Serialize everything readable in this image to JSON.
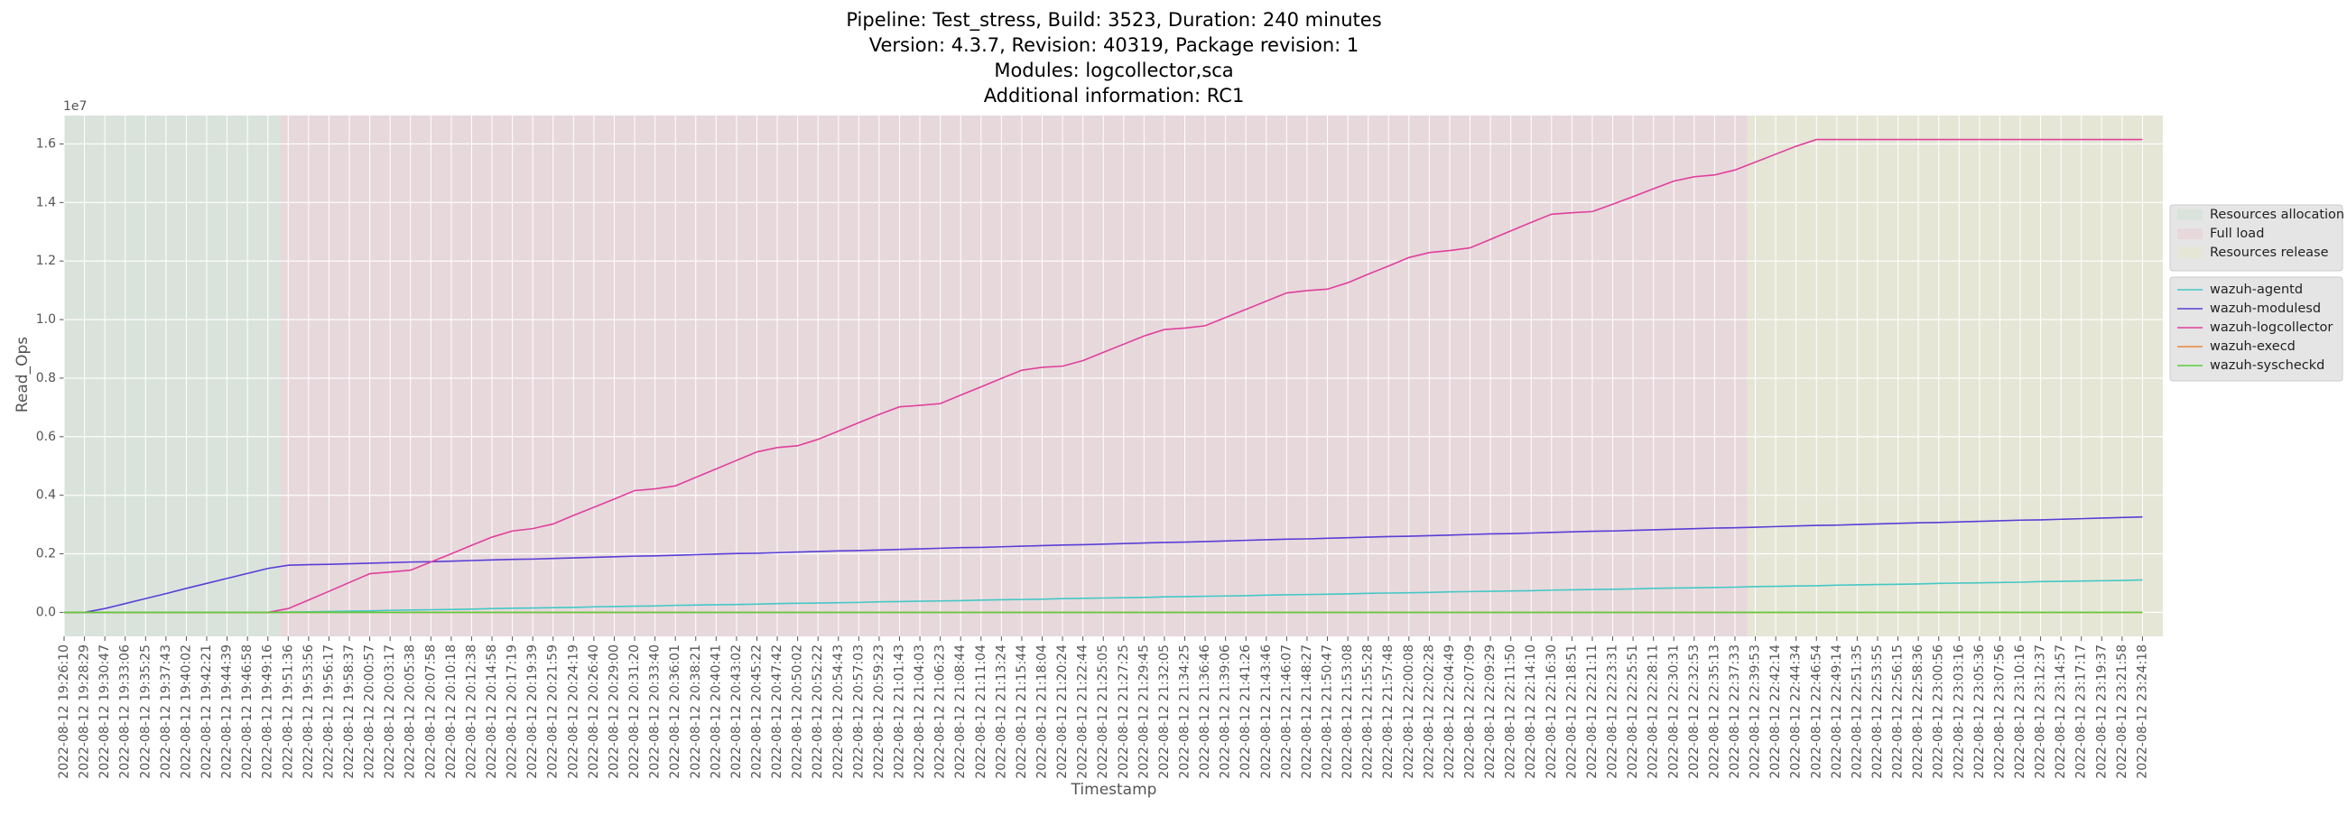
{
  "chart_data": {
    "type": "line",
    "title": [
      "Pipeline: Test_stress, Build: 3523, Duration: 240 minutes",
      "Version: 4.3.7, Revision: 40319, Package revision: 1",
      "Modules: logcollector,sca",
      "Additional information: RC1"
    ],
    "xlabel": "Timestamp",
    "ylabel": "Read_Ops",
    "y_offset_label": "1e7",
    "categories": [
      "2022-08-12 19:26:10",
      "2022-08-12 19:28:29",
      "2022-08-12 19:30:47",
      "2022-08-12 19:33:06",
      "2022-08-12 19:35:25",
      "2022-08-12 19:37:43",
      "2022-08-12 19:40:02",
      "2022-08-12 19:42:21",
      "2022-08-12 19:44:39",
      "2022-08-12 19:46:58",
      "2022-08-12 19:49:16",
      "2022-08-12 19:51:36",
      "2022-08-12 19:53:56",
      "2022-08-12 19:56:17",
      "2022-08-12 19:58:37",
      "2022-08-12 20:00:57",
      "2022-08-12 20:03:17",
      "2022-08-12 20:05:38",
      "2022-08-12 20:07:58",
      "2022-08-12 20:10:18",
      "2022-08-12 20:12:38",
      "2022-08-12 20:14:58",
      "2022-08-12 20:17:19",
      "2022-08-12 20:19:39",
      "2022-08-12 20:21:59",
      "2022-08-12 20:24:19",
      "2022-08-12 20:26:40",
      "2022-08-12 20:29:00",
      "2022-08-12 20:31:20",
      "2022-08-12 20:33:40",
      "2022-08-12 20:36:01",
      "2022-08-12 20:38:21",
      "2022-08-12 20:40:41",
      "2022-08-12 20:43:02",
      "2022-08-12 20:45:22",
      "2022-08-12 20:47:42",
      "2022-08-12 20:50:02",
      "2022-08-12 20:52:22",
      "2022-08-12 20:54:43",
      "2022-08-12 20:57:03",
      "2022-08-12 20:59:23",
      "2022-08-12 21:01:43",
      "2022-08-12 21:04:03",
      "2022-08-12 21:06:23",
      "2022-08-12 21:08:44",
      "2022-08-12 21:11:04",
      "2022-08-12 21:13:24",
      "2022-08-12 21:15:44",
      "2022-08-12 21:18:04",
      "2022-08-12 21:20:24",
      "2022-08-12 21:22:44",
      "2022-08-12 21:25:05",
      "2022-08-12 21:27:25",
      "2022-08-12 21:29:45",
      "2022-08-12 21:32:05",
      "2022-08-12 21:34:25",
      "2022-08-12 21:36:46",
      "2022-08-12 21:39:06",
      "2022-08-12 21:41:26",
      "2022-08-12 21:43:46",
      "2022-08-12 21:46:07",
      "2022-08-12 21:48:27",
      "2022-08-12 21:50:47",
      "2022-08-12 21:53:08",
      "2022-08-12 21:55:28",
      "2022-08-12 21:57:48",
      "2022-08-12 22:00:08",
      "2022-08-12 22:02:28",
      "2022-08-12 22:04:49",
      "2022-08-12 22:07:09",
      "2022-08-12 22:09:29",
      "2022-08-12 22:11:50",
      "2022-08-12 22:14:10",
      "2022-08-12 22:16:30",
      "2022-08-12 22:18:51",
      "2022-08-12 22:21:11",
      "2022-08-12 22:23:31",
      "2022-08-12 22:25:51",
      "2022-08-12 22:28:11",
      "2022-08-12 22:30:31",
      "2022-08-12 22:32:53",
      "2022-08-12 22:35:13",
      "2022-08-12 22:37:33",
      "2022-08-12 22:39:53",
      "2022-08-12 22:42:14",
      "2022-08-12 22:44:34",
      "2022-08-12 22:46:54",
      "2022-08-12 22:49:14",
      "2022-08-12 22:51:35",
      "2022-08-12 22:53:55",
      "2022-08-12 22:56:15",
      "2022-08-12 22:58:36",
      "2022-08-12 23:00:56",
      "2022-08-12 23:03:16",
      "2022-08-12 23:05:36",
      "2022-08-12 23:07:56",
      "2022-08-12 23:10:16",
      "2022-08-12 23:12:37",
      "2022-08-12 23:14:57",
      "2022-08-12 23:17:17",
      "2022-08-12 23:19:37",
      "2022-08-12 23:21:58",
      "2022-08-12 23:24:18"
    ],
    "xlim": [
      0,
      103
    ],
    "ylim": [
      -820000,
      16970000
    ],
    "yticks": [
      {
        "value": 0,
        "label": "0.0"
      },
      {
        "value": 2000000,
        "label": "0.2"
      },
      {
        "value": 4000000,
        "label": "0.4"
      },
      {
        "value": 6000000,
        "label": "0.6"
      },
      {
        "value": 8000000,
        "label": "0.8"
      },
      {
        "value": 10000000,
        "label": "1.0"
      },
      {
        "value": 12000000,
        "label": "1.2"
      },
      {
        "value": 14000000,
        "label": "1.4"
      },
      {
        "value": 16000000,
        "label": "1.6"
      }
    ],
    "grid": true,
    "legend": "right",
    "phases": [
      {
        "name": "Resources allocation",
        "color": "#d9e3dc",
        "span": [
          0,
          10.6
        ]
      },
      {
        "name": "Full load",
        "color": "#e7d8dc",
        "span": [
          10.6,
          82.6
        ]
      },
      {
        "name": "Resources release",
        "color": "#e6e6d7",
        "span": [
          82.6,
          103
        ]
      }
    ],
    "series": [
      {
        "name": "wazuh-agentd",
        "color": "#45c8c4",
        "values": [
          0,
          0,
          0,
          0,
          0,
          0,
          0,
          0,
          0,
          0,
          0,
          10000,
          20000,
          30000,
          40000,
          50000,
          70000,
          80000,
          90000,
          100000,
          110000,
          130000,
          140000,
          150000,
          160000,
          170000,
          190000,
          200000,
          210000,
          220000,
          240000,
          250000,
          260000,
          270000,
          280000,
          300000,
          310000,
          320000,
          330000,
          340000,
          360000,
          370000,
          380000,
          390000,
          400000,
          420000,
          430000,
          440000,
          450000,
          470000,
          480000,
          490000,
          500000,
          510000,
          530000,
          540000,
          550000,
          560000,
          570000,
          590000,
          600000,
          610000,
          620000,
          630000,
          650000,
          660000,
          670000,
          680000,
          700000,
          710000,
          720000,
          730000,
          740000,
          760000,
          770000,
          780000,
          790000,
          800000,
          820000,
          830000,
          840000,
          850000,
          860000,
          880000,
          890000,
          900000,
          910000,
          930000,
          940000,
          950000,
          960000,
          970000,
          990000,
          1000000,
          1010000,
          1020000,
          1030000,
          1050000,
          1060000,
          1070000,
          1080000,
          1090000,
          1110000
        ]
      },
      {
        "name": "wazuh-modulesd",
        "color": "#5a3ed6",
        "values": [
          0,
          0,
          130000,
          300000,
          470000,
          640000,
          820000,
          990000,
          1160000,
          1330000,
          1500000,
          1610000,
          1630000,
          1640000,
          1660000,
          1680000,
          1700000,
          1720000,
          1730000,
          1750000,
          1770000,
          1790000,
          1810000,
          1820000,
          1840000,
          1860000,
          1880000,
          1900000,
          1920000,
          1930000,
          1950000,
          1970000,
          1990000,
          2010000,
          2020000,
          2040000,
          2060000,
          2080000,
          2100000,
          2110000,
          2130000,
          2150000,
          2170000,
          2190000,
          2210000,
          2220000,
          2240000,
          2260000,
          2280000,
          2300000,
          2310000,
          2330000,
          2350000,
          2370000,
          2390000,
          2400000,
          2420000,
          2440000,
          2460000,
          2480000,
          2500000,
          2510000,
          2530000,
          2550000,
          2570000,
          2590000,
          2600000,
          2620000,
          2640000,
          2660000,
          2680000,
          2690000,
          2710000,
          2730000,
          2750000,
          2770000,
          2780000,
          2800000,
          2820000,
          2840000,
          2860000,
          2880000,
          2890000,
          2910000,
          2930000,
          2950000,
          2970000,
          2980000,
          3000000,
          3020000,
          3040000,
          3060000,
          3070000,
          3090000,
          3110000,
          3130000,
          3150000,
          3160000,
          3180000,
          3200000,
          3220000,
          3240000,
          3260000
        ]
      },
      {
        "name": "wazuh-logcollector",
        "color": "#e0409c",
        "values": [
          0,
          0,
          0,
          0,
          0,
          0,
          0,
          0,
          0,
          0,
          0,
          130000,
          420000,
          720000,
          1020000,
          1320000,
          1380000,
          1440000,
          1720000,
          2000000,
          2290000,
          2570000,
          2780000,
          2860000,
          3020000,
          3310000,
          3590000,
          3870000,
          4160000,
          4220000,
          4320000,
          4610000,
          4900000,
          5190000,
          5480000,
          5630000,
          5690000,
          5910000,
          6190000,
          6480000,
          6760000,
          7020000,
          7070000,
          7130000,
          7420000,
          7700000,
          7990000,
          8270000,
          8370000,
          8410000,
          8600000,
          8880000,
          9160000,
          9440000,
          9660000,
          9710000,
          9790000,
          10070000,
          10350000,
          10630000,
          10910000,
          10990000,
          11040000,
          11260000,
          11550000,
          11830000,
          12120000,
          12290000,
          12360000,
          12450000,
          12740000,
          13030000,
          13320000,
          13600000,
          13650000,
          13690000,
          13940000,
          14200000,
          14470000,
          14730000,
          14880000,
          14940000,
          15110000,
          15380000,
          15650000,
          15920000,
          16150000,
          16150000,
          16150000,
          16150000,
          16150000,
          16150000,
          16150000,
          16150000,
          16150000,
          16150000,
          16150000,
          16150000,
          16150000,
          16150000,
          16150000,
          16150000,
          16150000
        ]
      },
      {
        "name": "wazuh-execd",
        "color": "#e8893a",
        "values": [
          0,
          0,
          0,
          0,
          0,
          0,
          0,
          0,
          0,
          0,
          0,
          0,
          0,
          0,
          0,
          0,
          0,
          0,
          0,
          0,
          0,
          0,
          0,
          0,
          0,
          0,
          0,
          0,
          0,
          0,
          0,
          0,
          0,
          0,
          0,
          0,
          0,
          0,
          0,
          0,
          0,
          0,
          0,
          0,
          0,
          0,
          0,
          0,
          0,
          0,
          0,
          0,
          0,
          0,
          0,
          0,
          0,
          0,
          0,
          0,
          0,
          0,
          0,
          0,
          0,
          0,
          0,
          0,
          0,
          0,
          0,
          0,
          0,
          0,
          0,
          0,
          0,
          0,
          0,
          0,
          0,
          0,
          0,
          0,
          0,
          0,
          0,
          0,
          0,
          0,
          0,
          0,
          0,
          0,
          0,
          0,
          0,
          0,
          0,
          0,
          0,
          0,
          0
        ]
      },
      {
        "name": "wazuh-syscheckd",
        "color": "#5ccc3c",
        "values": [
          0,
          0,
          0,
          0,
          0,
          0,
          0,
          0,
          0,
          0,
          0,
          0,
          0,
          0,
          0,
          0,
          0,
          0,
          0,
          0,
          0,
          0,
          0,
          0,
          0,
          0,
          0,
          0,
          0,
          0,
          0,
          0,
          0,
          0,
          0,
          0,
          0,
          0,
          0,
          0,
          0,
          0,
          0,
          0,
          0,
          0,
          0,
          0,
          0,
          0,
          0,
          0,
          0,
          0,
          0,
          0,
          0,
          0,
          0,
          0,
          0,
          0,
          0,
          0,
          0,
          0,
          0,
          0,
          0,
          0,
          0,
          0,
          0,
          0,
          0,
          0,
          0,
          0,
          0,
          0,
          0,
          0,
          0,
          0,
          0,
          0,
          0,
          0,
          0,
          0,
          0,
          0,
          0,
          0,
          0,
          0,
          0,
          0,
          0,
          0,
          0,
          0,
          0
        ]
      }
    ]
  }
}
